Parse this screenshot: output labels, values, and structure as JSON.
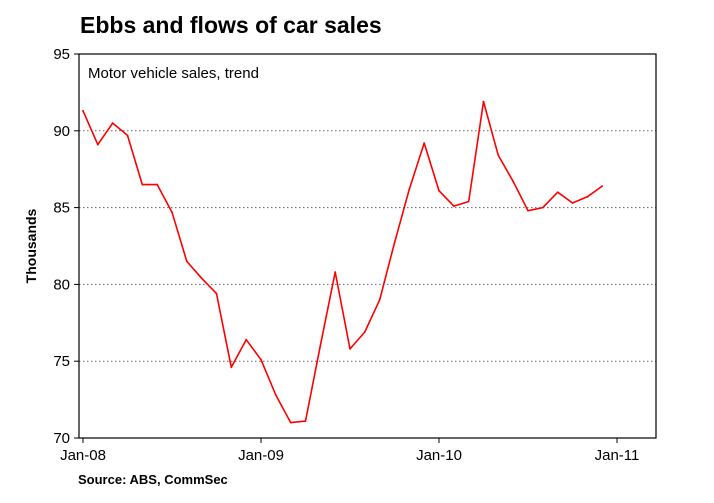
{
  "chart_data": {
    "type": "line",
    "title": "Ebbs and flows of car sales",
    "subtitle": "Motor vehicle sales, trend",
    "ylabel": "Thousands",
    "xlabel": "",
    "ylim": [
      70,
      95
    ],
    "yticks": [
      70,
      75,
      80,
      85,
      90,
      95
    ],
    "x_ticks": [
      {
        "label": "Jan-08",
        "month": 0
      },
      {
        "label": "Jan-09",
        "month": 12
      },
      {
        "label": "Jan-10",
        "month": 24
      },
      {
        "label": "Jan-11",
        "month": 36
      }
    ],
    "grid": true,
    "series": [
      {
        "color": "#ff0000",
        "x": [
          0,
          1,
          2,
          3,
          4,
          5,
          6,
          7,
          8,
          9,
          10,
          11,
          12,
          13,
          14,
          15,
          16,
          17,
          18,
          19,
          20,
          21,
          22,
          23,
          24,
          25,
          26,
          27,
          28,
          29,
          30,
          31,
          32,
          33,
          34,
          35
        ],
        "values": [
          91.3,
          89.1,
          90.5,
          89.7,
          86.5,
          86.5,
          84.7,
          81.5,
          80.4,
          79.4,
          74.6,
          76.4,
          75.1,
          72.8,
          71.0,
          71.1,
          76.0,
          80.8,
          75.8,
          76.9,
          79.0,
          82.7,
          86.2,
          89.2,
          86.1,
          85.1,
          85.4,
          91.9,
          88.4,
          86.7,
          84.8,
          85.0,
          86.0,
          85.3,
          85.7,
          86.4
        ]
      }
    ],
    "source": "Source: ABS, CommSec"
  }
}
